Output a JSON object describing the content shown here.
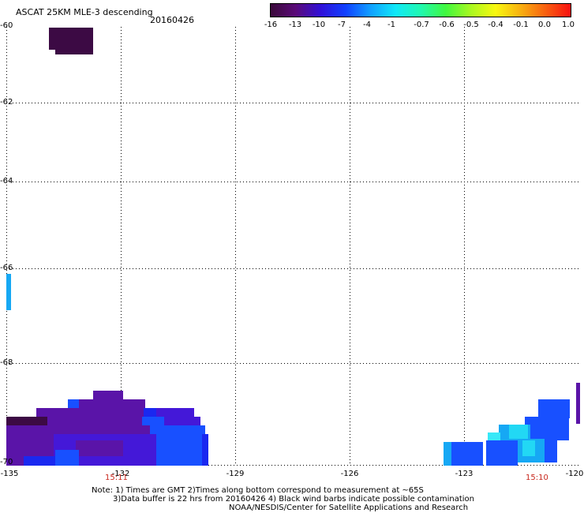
{
  "header": {
    "title": "ASCAT 25KM MLE-3 descending",
    "date": "20160426"
  },
  "colorbar": {
    "labels": [
      "-16",
      "-13",
      "-10",
      "-7",
      "-4",
      "-1",
      "-0.7",
      "-0.6",
      "-0.5",
      "-0.4",
      "-0.1",
      "0.0",
      "1.0"
    ],
    "colors": [
      "#3a0a3a",
      "#5a0a78",
      "#3010d8",
      "#1040ff",
      "#10a0ff",
      "#10e8f8",
      "#20f8b0",
      "#40f840",
      "#a8f820",
      "#f8f810",
      "#f8b010",
      "#f86010",
      "#f81010"
    ]
  },
  "map": {
    "latitude_labels": [
      "-60",
      "-62",
      "-64",
      "-66",
      "-68",
      "-70"
    ],
    "longitude_labels": [
      "-135",
      "-132",
      "-129",
      "-126",
      "-123",
      "-120"
    ],
    "time_labels": [
      "15:11",
      "15:10"
    ],
    "data_colors": {
      "dark_purple": "#3c0a44",
      "purple": "#5a14a8",
      "violet_blue": "#4418d8",
      "blue": "#1a28f0",
      "bright_blue": "#1850ff",
      "sky": "#16a8f4",
      "cyan": "#22d8f4",
      "light_cyan": "#38e8f8"
    }
  },
  "notes": {
    "line1": "Note: 1) Times are GMT 2)Times along bottom correspond to measurement at ~65S",
    "line2": "3)Data buffer is 22 hrs from 20160426 4) Black wind barbs indicate possible contamination",
    "line3": "NOAA/NESDIS/Center for Satellite Applications and Research"
  }
}
